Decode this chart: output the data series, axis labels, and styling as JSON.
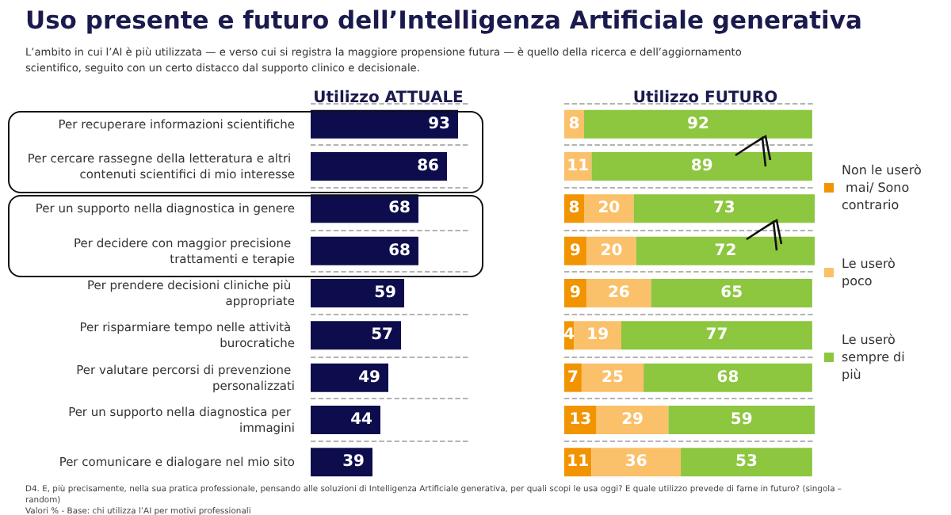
{
  "chart_data": [
    {
      "type": "bar",
      "orientation": "horizontal",
      "title": "Uso presente e futuro dell’Intelligenza Artificiale generativa",
      "subtitle": "L’ambito in cui l’AI è più utilizzata — e verso cui si registra la maggiore propensione futura — è quello della ricerca e dell’aggiornamento scientifico, seguito con un certo distacco dal supporto clinico e decisionale.",
      "xlabel": "Utilizzo ATTUALE",
      "categories": [
        "Per recuperare informazioni scientifiche",
        "Per cercare rassegne della letteratura e altri contenuti scientifici di mio interesse",
        "Per un supporto nella diagnostica in genere",
        "Per decidere con maggior precisione trattamenti e terapie",
        "Per prendere decisioni cliniche più appropriate",
        "Per risparmiare tempo nelle attività burocratiche",
        "Per valutare percorsi di prevenzione personalizzati",
        "Per un supporto nella diagnostica per immagini",
        "Per comunicare e dialogare nel mio sito"
      ],
      "values": [
        93,
        86,
        68,
        68,
        59,
        57,
        49,
        44,
        39
      ],
      "color": "#0d0d4d",
      "data_labels": true,
      "grid": "y",
      "annotations": [
        "D4. E, più precisamente, nella sua pratica professionale, pensando alle soluzioni di Intelligenza Artificiale generativa, per quali scopi le usa oggi? E quale utilizzo prevede di farne in futuro? (singola – random)",
        "Valori % - Base: chi utilizza l’AI per motivi professionali"
      ]
    },
    {
      "type": "bar",
      "orientation": "horizontal",
      "stacked": true,
      "xlabel": "Utilizzo FUTURO",
      "categories": [
        null,
        null,
        null,
        null,
        null,
        null,
        null,
        null,
        null
      ],
      "series": [
        {
          "name": "Non le userò mai/ Sono contrario",
          "color": "#f29400",
          "values": [
            null,
            null,
            8,
            9,
            9,
            4,
            7,
            13,
            11
          ]
        },
        {
          "name": "Le userò poco",
          "color": "#fbc06a",
          "values": [
            8,
            11,
            20,
            20,
            26,
            19,
            25,
            29,
            36
          ]
        },
        {
          "name": "Le userò sempre di più",
          "color": "#8dc63f",
          "values": [
            92,
            89,
            73,
            72,
            65,
            77,
            68,
            59,
            53
          ]
        }
      ],
      "data_labels": true,
      "grid": "y",
      "legend": "right"
    }
  ]
}
